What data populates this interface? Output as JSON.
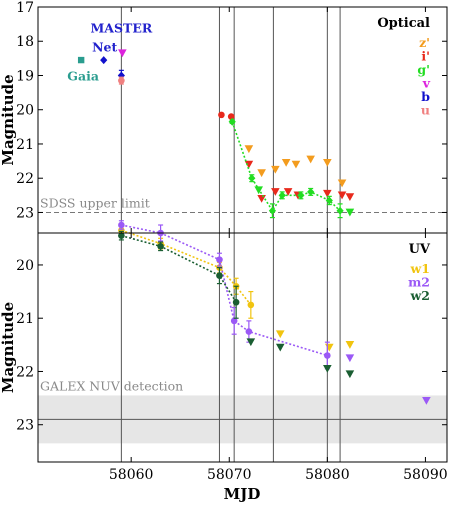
{
  "figure": {
    "xlabel": "MJD"
  },
  "chart_data": [
    {
      "type": "scatter",
      "panel": "top",
      "title": "Optical",
      "ylabel": "Magnitude",
      "ylim": [
        23.6,
        17
      ],
      "xlim": [
        58050.5,
        58092.2
      ],
      "yticks": [
        17,
        18,
        19,
        20,
        21,
        22,
        23
      ],
      "y_inverted": true,
      "reference_line": {
        "y": 23.0,
        "label": "SDSS upper limit",
        "style": "dashed",
        "color": "#777777"
      },
      "vertical_lines": [
        58059,
        58069,
        58070.5,
        58074.5,
        58080,
        58081.3
      ],
      "annotations": [
        {
          "text": "MASTER",
          "x": 58059,
          "y": 17.75,
          "color": "#2222cc"
        },
        {
          "text": "Net",
          "x": 58057.3,
          "y": 18.3,
          "color": "#2222cc"
        },
        {
          "text": "Gaia",
          "x": 58055.1,
          "y": 19.15,
          "color": "#2a9d8f"
        }
      ],
      "legend": {
        "position": "top-right",
        "entries": [
          "z'",
          "i'",
          "g'",
          "v",
          "b",
          "u"
        ]
      },
      "series": [
        {
          "name": "z'",
          "color": "#f39c1e",
          "marker": "triangle-down",
          "upper_limit": true,
          "x": [
            58072.0,
            58073.3,
            58074.7,
            58075.8,
            58076.8,
            58078.3,
            58080.0,
            58081.5
          ],
          "y": [
            21.15,
            21.85,
            21.75,
            21.55,
            21.6,
            21.45,
            21.55,
            22.15
          ]
        },
        {
          "name": "i'",
          "color": "#e8291c",
          "marker": "circle",
          "x": [
            58069.2,
            58070.2
          ],
          "y": [
            20.15,
            20.2
          ]
        },
        {
          "name": "i'",
          "color": "#e8291c",
          "marker": "triangle-down",
          "upper_limit": true,
          "x": [
            58072.0,
            58073.3,
            58074.7,
            58076.0,
            58077.0,
            58080.0,
            58081.5,
            58082.3
          ],
          "y": [
            21.6,
            22.6,
            22.4,
            22.4,
            22.5,
            22.45,
            22.5,
            22.55
          ]
        },
        {
          "name": "g'",
          "color": "#22dd22",
          "marker": "diamond",
          "connect": true,
          "x": [
            58070.3,
            58072.3,
            58074.4,
            58075.4,
            58077.3,
            58078.3,
            58080.2,
            58081.3
          ],
          "y": [
            20.35,
            22.0,
            22.95,
            22.5,
            22.5,
            22.4,
            22.65,
            22.95
          ],
          "yerr": [
            0.05,
            0.1,
            0.2,
            0.1,
            0.1,
            0.1,
            0.12,
            0.2
          ]
        },
        {
          "name": "g'",
          "color": "#22dd22",
          "marker": "triangle-down",
          "upper_limit": true,
          "x": [
            58073.0,
            58082.3
          ],
          "y": [
            22.35,
            23.0
          ]
        },
        {
          "name": "v",
          "color": "#dd22dd",
          "marker": "triangle-down",
          "upper_limit": true,
          "x": [
            58059.1
          ],
          "y": [
            18.35
          ]
        },
        {
          "name": "b",
          "color": "#1111cc",
          "marker": "diamond",
          "x": [
            58057.2,
            58059.0
          ],
          "y": [
            18.55,
            19.0
          ],
          "yerr": [
            0,
            0.15
          ]
        },
        {
          "name": "u",
          "color": "#f08080",
          "marker": "circle",
          "x": [
            58059.0
          ],
          "y": [
            19.15
          ],
          "yerr": [
            0.1
          ]
        },
        {
          "name": "Gaia",
          "color": "#2a9d8f",
          "marker": "square",
          "x": [
            58054.9
          ],
          "y": [
            18.55
          ]
        }
      ]
    },
    {
      "type": "scatter",
      "panel": "bottom",
      "title": "UV",
      "ylabel": "Magnitude",
      "xlabel": "MJD",
      "ylim": [
        23.7,
        19.4
      ],
      "xlim": [
        58050.5,
        58092.2
      ],
      "xticks": [
        58060,
        58070,
        58080,
        58090
      ],
      "yticks": [
        20,
        21,
        22,
        23
      ],
      "y_inverted": true,
      "reference_band": {
        "y_min": 22.45,
        "y_max": 23.35,
        "line": 22.9,
        "label": "GALEX NUV detection",
        "color": "#e6e6e6"
      },
      "vertical_lines": [
        58059,
        58069,
        58070.5,
        58074.5,
        58080,
        58081.3
      ],
      "legend": {
        "position": "top-right",
        "entries": [
          "w1",
          "m2",
          "w2"
        ]
      },
      "series": [
        {
          "name": "w1",
          "color": "#f1c40f",
          "marker": "circle",
          "connect": true,
          "x": [
            58059.0,
            58063.0,
            58069.0,
            58070.7,
            58072.2
          ],
          "y": [
            19.35,
            19.6,
            20.05,
            20.4,
            20.75
          ],
          "yerr": [
            0.08,
            0.1,
            0.1,
            0.15,
            0.25
          ]
        },
        {
          "name": "w1",
          "color": "#f1c40f",
          "marker": "triangle-down",
          "upper_limit": true,
          "x": [
            58075.2,
            58080.2,
            58082.3
          ],
          "y": [
            21.3,
            21.55,
            21.5
          ]
        },
        {
          "name": "m2",
          "color": "#9b59f6",
          "marker": "circle",
          "connect": true,
          "x": [
            58059.0,
            58063.0,
            58069.0,
            58070.5,
            58072.0,
            58080.0
          ],
          "y": [
            19.25,
            19.4,
            19.9,
            21.05,
            21.25,
            21.7
          ],
          "yerr": [
            0.08,
            0.15,
            0.12,
            0.25,
            0.2,
            0.25
          ]
        },
        {
          "name": "m2",
          "color": "#9b59f6",
          "marker": "triangle-down",
          "upper_limit": true,
          "x": [
            58082.3,
            58090.1
          ],
          "y": [
            21.75,
            22.55
          ]
        },
        {
          "name": "w2",
          "color": "#1a5e32",
          "marker": "circle",
          "connect": true,
          "x": [
            58059.0,
            58063.0,
            58069.0,
            58070.7
          ],
          "y": [
            19.45,
            19.65,
            20.2,
            20.7
          ],
          "yerr": [
            0.08,
            0.08,
            0.15,
            0.3
          ]
        },
        {
          "name": "w2",
          "color": "#1a5e32",
          "marker": "triangle-down",
          "upper_limit": true,
          "x": [
            58072.2,
            58075.2,
            58080.0,
            58082.3
          ],
          "y": [
            21.45,
            21.55,
            21.95,
            22.05
          ]
        }
      ]
    }
  ]
}
